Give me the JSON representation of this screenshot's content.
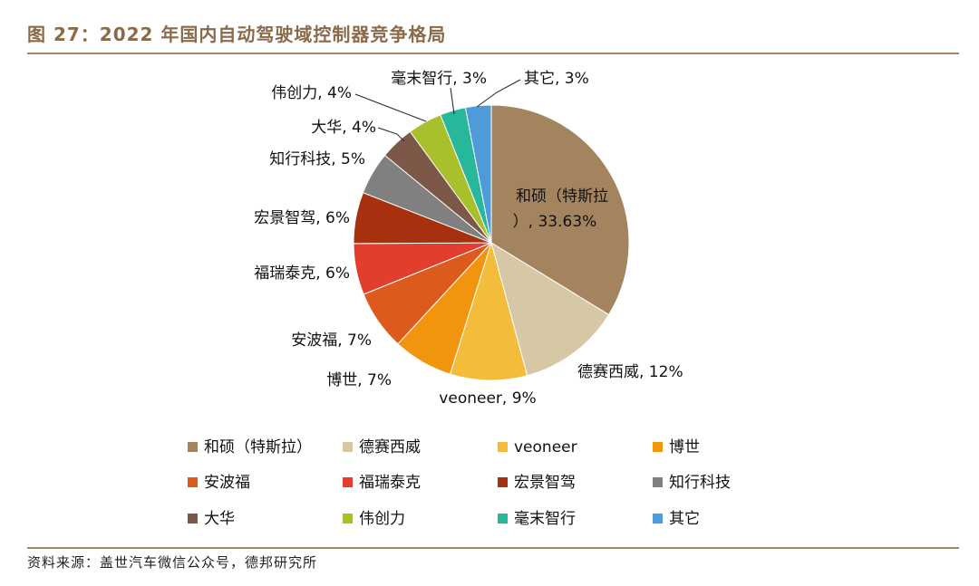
{
  "figure": {
    "title": "图 27：2022 年国内自动驾驶域控制器竞争格局",
    "source": "资料来源：盖世汽车微信公众号，德邦研究所"
  },
  "chart_data": {
    "type": "pie",
    "title": "",
    "legend_position": "bottom",
    "slices": [
      {
        "name": "和硕（特斯拉）",
        "value": 33.63,
        "label": "33.63%",
        "color": "#a4845e"
      },
      {
        "name": "德赛西威",
        "value": 12,
        "label": "12%",
        "color": "#d6c7a5"
      },
      {
        "name": "veoneer",
        "value": 9,
        "label": "9%",
        "color": "#f3bc3a"
      },
      {
        "name": "博世",
        "value": 7,
        "label": "7%",
        "color": "#f1950f"
      },
      {
        "name": "安波福",
        "value": 7,
        "label": "7%",
        "color": "#db5a1c"
      },
      {
        "name": "福瑞泰克",
        "value": 6,
        "label": "6%",
        "color": "#e23e2e"
      },
      {
        "name": "宏景智驾",
        "value": 6,
        "label": "6%",
        "color": "#a7300f"
      },
      {
        "name": "知行科技",
        "value": 5,
        "label": "5%",
        "color": "#808080"
      },
      {
        "name": "大华",
        "value": 4,
        "label": "4%",
        "color": "#7b5848"
      },
      {
        "name": "伟创力",
        "value": 4,
        "label": "4%",
        "color": "#a9c02d"
      },
      {
        "name": "毫末智行",
        "value": 3,
        "label": "3%",
        "color": "#27b79a"
      },
      {
        "name": "其它",
        "value": 3,
        "label": "3%",
        "color": "#4f9bd9"
      }
    ]
  }
}
